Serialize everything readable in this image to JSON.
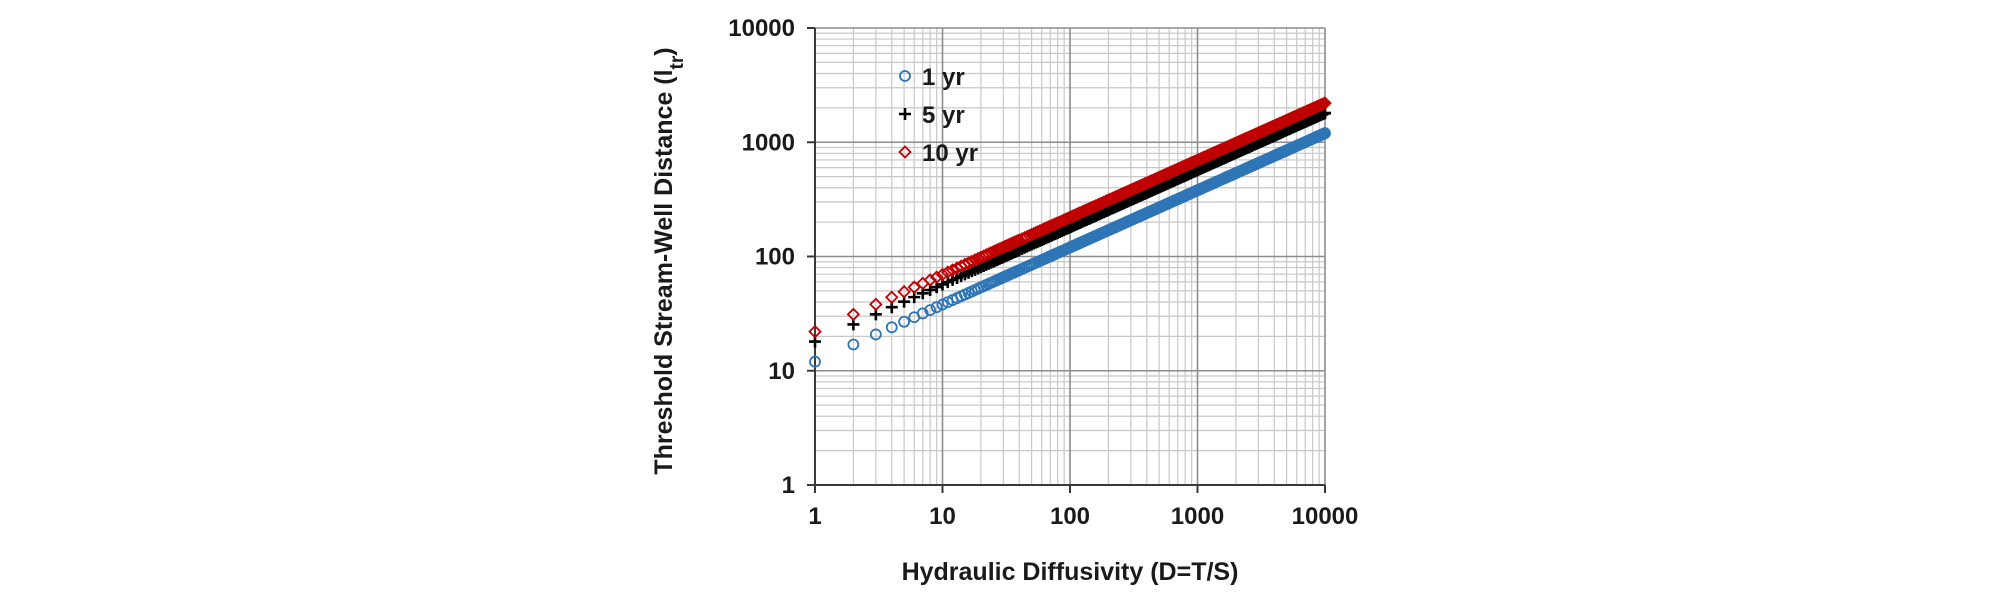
{
  "chart_data": {
    "type": "scatter",
    "title": "",
    "xlabel": "Hydraulic Diffusivity (D=T/S)",
    "ylabel": {
      "main": "Threshold Stream-Well Distance (l",
      "subscript": "tr",
      "close": ")"
    },
    "x_scale": "log",
    "y_scale": "log",
    "xlim": [
      1,
      10000
    ],
    "ylim": [
      1,
      10000
    ],
    "x_ticks": [
      1,
      10,
      100,
      1000,
      10000
    ],
    "y_ticks": [
      1,
      10,
      100,
      1000,
      10000
    ],
    "x_tick_labels": [
      "1",
      "10",
      "100",
      "1000",
      "10000"
    ],
    "y_tick_labels": [
      "1",
      "10",
      "100",
      "1000",
      "10000"
    ],
    "grid": true,
    "legend_position": "top-left",
    "x_values": "integers 1 to 10000",
    "series": [
      {
        "name": "1 yr",
        "marker": "circle",
        "color": "#2e75b6",
        "model": "y = 12 * x^0.5",
        "sample_points": [
          [
            1,
            12
          ],
          [
            10,
            38
          ],
          [
            100,
            120
          ],
          [
            1000,
            379
          ],
          [
            10000,
            1200
          ]
        ]
      },
      {
        "name": "5 yr",
        "marker": "plus",
        "color": "#000000",
        "model": "y = 18 * x^0.5",
        "sample_points": [
          [
            1,
            18
          ],
          [
            10,
            57
          ],
          [
            100,
            180
          ],
          [
            1000,
            569
          ],
          [
            10000,
            1800
          ]
        ]
      },
      {
        "name": "10 yr",
        "marker": "diamond",
        "color": "#c00000",
        "model": "y = 22 * x^0.5",
        "sample_points": [
          [
            1,
            22
          ],
          [
            10,
            70
          ],
          [
            100,
            220
          ],
          [
            1000,
            696
          ],
          [
            10000,
            2200
          ]
        ]
      }
    ]
  }
}
